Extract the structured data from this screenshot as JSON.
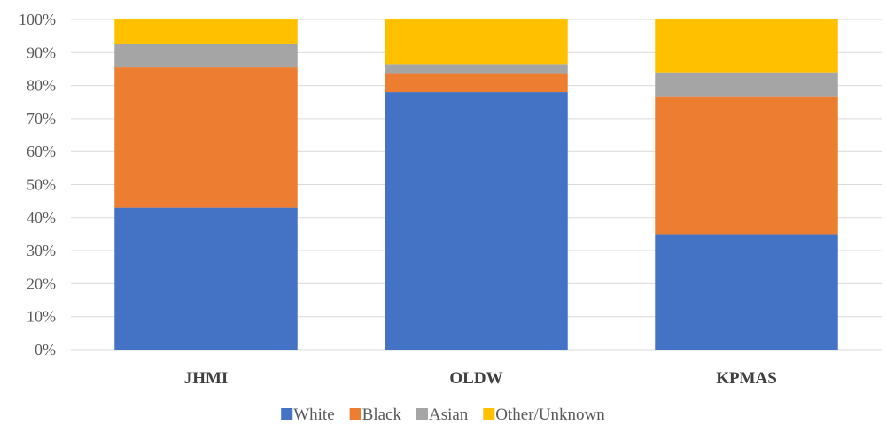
{
  "chart_data": {
    "type": "bar",
    "stacked": true,
    "normalized": true,
    "categories": [
      "JHMI",
      "OLDW",
      "KPMAS"
    ],
    "series": [
      {
        "name": "White",
        "color": "#4472C4",
        "values": [
          43.0,
          78.0,
          35.0
        ]
      },
      {
        "name": "Black",
        "color": "#ED7D31",
        "values": [
          42.5,
          5.5,
          41.5
        ]
      },
      {
        "name": "Asian",
        "color": "#A5A5A5",
        "values": [
          7.0,
          3.0,
          7.5
        ]
      },
      {
        "name": "Other/Unknown",
        "color": "#FFC000",
        "values": [
          7.5,
          13.5,
          16.0
        ]
      }
    ],
    "y_ticks": [
      "0%",
      "10%",
      "20%",
      "30%",
      "40%",
      "50%",
      "60%",
      "70%",
      "80%",
      "90%",
      "100%"
    ],
    "ylim": [
      0,
      100
    ],
    "grid": true,
    "legend_position": "bottom"
  }
}
